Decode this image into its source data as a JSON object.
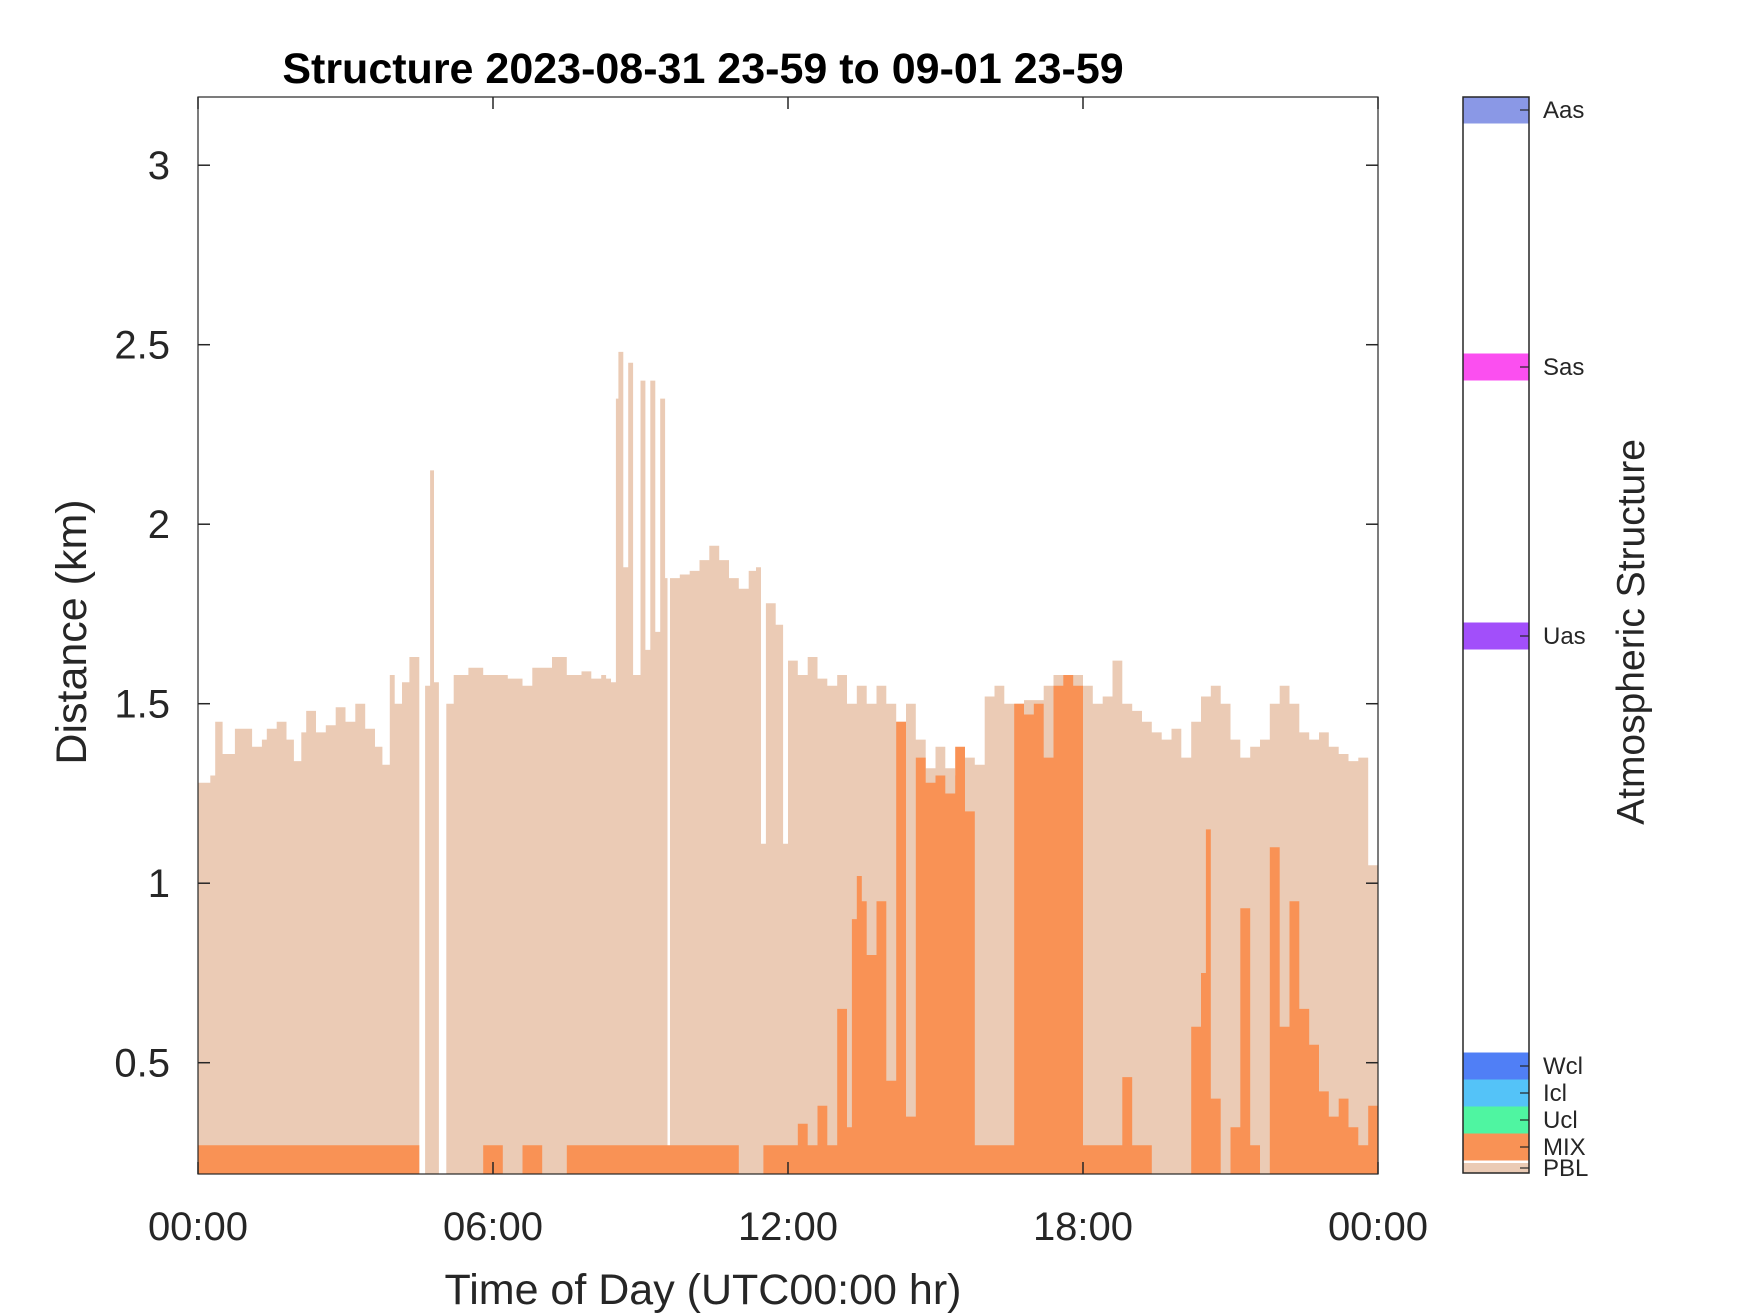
{
  "chart_data": {
    "type": "area",
    "title": "Structure 2023-08-31 23-59 to 09-01 23-59",
    "xlabel": "Time of Day (UTC00:00 hr)",
    "ylabel": "Distance (km)",
    "x_unit": "hours",
    "xlim": [
      0,
      24
    ],
    "ylim": [
      0.19,
      3.19
    ],
    "xticks": [
      0,
      6,
      12,
      18,
      24
    ],
    "xtick_labels": [
      "00:00",
      "06:00",
      "12:00",
      "18:00",
      "00:00"
    ],
    "yticks": [
      0.5,
      1,
      1.5,
      2,
      2.5,
      3
    ],
    "ytick_labels": [
      "0.5",
      "1",
      "1.5",
      "2",
      "2.5",
      "3"
    ],
    "colors": {
      "PBL": "#ebcbb5",
      "MIX": "#f99255"
    },
    "series": [
      {
        "name": "PBL",
        "color": "#ebcbb5",
        "points": [
          [
            0.0,
            1.28
          ],
          [
            0.25,
            1.3
          ],
          [
            0.35,
            1.45
          ],
          [
            0.5,
            1.36
          ],
          [
            0.7,
            1.36
          ],
          [
            0.75,
            1.43
          ],
          [
            1.0,
            1.43
          ],
          [
            1.1,
            1.38
          ],
          [
            1.3,
            1.4
          ],
          [
            1.4,
            1.43
          ],
          [
            1.6,
            1.45
          ],
          [
            1.8,
            1.4
          ],
          [
            1.95,
            1.34
          ],
          [
            2.1,
            1.42
          ],
          [
            2.2,
            1.48
          ],
          [
            2.4,
            1.42
          ],
          [
            2.6,
            1.44
          ],
          [
            2.8,
            1.49
          ],
          [
            3.0,
            1.45
          ],
          [
            3.2,
            1.5
          ],
          [
            3.4,
            1.43
          ],
          [
            3.6,
            1.38
          ],
          [
            3.75,
            1.33
          ],
          [
            3.9,
            1.58
          ],
          [
            4.0,
            1.5
          ],
          [
            4.15,
            1.56
          ],
          [
            4.3,
            1.63
          ],
          [
            4.45,
            1.63
          ],
          [
            4.5,
            0.19
          ],
          [
            4.6,
            0.19
          ],
          [
            4.62,
            1.55
          ],
          [
            4.72,
            2.15
          ],
          [
            4.8,
            1.56
          ],
          [
            4.9,
            0.19
          ],
          [
            5.05,
            1.5
          ],
          [
            5.2,
            1.58
          ],
          [
            5.5,
            1.6
          ],
          [
            5.8,
            1.58
          ],
          [
            6.0,
            1.58
          ],
          [
            6.3,
            1.57
          ],
          [
            6.6,
            1.55
          ],
          [
            6.8,
            1.6
          ],
          [
            7.0,
            1.6
          ],
          [
            7.2,
            1.63
          ],
          [
            7.5,
            1.58
          ],
          [
            7.8,
            1.59
          ],
          [
            8.0,
            1.57
          ],
          [
            8.2,
            1.58
          ],
          [
            8.3,
            1.57
          ],
          [
            8.4,
            1.56
          ],
          [
            8.5,
            2.35
          ],
          [
            8.55,
            2.48
          ],
          [
            8.65,
            1.88
          ],
          [
            8.75,
            2.45
          ],
          [
            8.85,
            1.58
          ],
          [
            9.0,
            2.4
          ],
          [
            9.1,
            1.65
          ],
          [
            9.2,
            2.4
          ],
          [
            9.3,
            1.7
          ],
          [
            9.4,
            2.35
          ],
          [
            9.5,
            1.85
          ],
          [
            9.55,
            0.19
          ],
          [
            9.6,
            1.85
          ],
          [
            9.8,
            1.86
          ],
          [
            10.0,
            1.87
          ],
          [
            10.2,
            1.9
          ],
          [
            10.4,
            1.94
          ],
          [
            10.6,
            1.9
          ],
          [
            10.8,
            1.85
          ],
          [
            11.0,
            1.82
          ],
          [
            11.2,
            1.87
          ],
          [
            11.35,
            1.88
          ],
          [
            11.45,
            1.11
          ],
          [
            11.55,
            1.78
          ],
          [
            11.75,
            1.72
          ],
          [
            11.9,
            1.11
          ],
          [
            12.0,
            1.62
          ],
          [
            12.2,
            1.58
          ],
          [
            12.4,
            1.63
          ],
          [
            12.6,
            1.57
          ],
          [
            12.8,
            1.55
          ],
          [
            13.0,
            1.58
          ],
          [
            13.2,
            1.5
          ],
          [
            13.4,
            1.55
          ],
          [
            13.6,
            1.5
          ],
          [
            13.8,
            1.55
          ],
          [
            14.0,
            1.5
          ],
          [
            14.2,
            1.45
          ],
          [
            14.4,
            1.5
          ],
          [
            14.6,
            1.4
          ],
          [
            14.8,
            1.32
          ],
          [
            15.0,
            1.38
          ],
          [
            15.2,
            1.32
          ],
          [
            15.4,
            1.3
          ],
          [
            15.6,
            1.35
          ],
          [
            15.8,
            1.33
          ],
          [
            16.0,
            1.52
          ],
          [
            16.2,
            1.55
          ],
          [
            16.4,
            1.5
          ],
          [
            16.6,
            1.5
          ],
          [
            16.8,
            1.51
          ],
          [
            17.0,
            1.51
          ],
          [
            17.2,
            1.55
          ],
          [
            17.4,
            1.58
          ],
          [
            17.6,
            1.58
          ],
          [
            17.8,
            1.58
          ],
          [
            18.0,
            1.55
          ],
          [
            18.2,
            1.5
          ],
          [
            18.4,
            1.52
          ],
          [
            18.6,
            1.62
          ],
          [
            18.8,
            1.5
          ],
          [
            19.0,
            1.48
          ],
          [
            19.2,
            1.45
          ],
          [
            19.4,
            1.42
          ],
          [
            19.6,
            1.4
          ],
          [
            19.8,
            1.43
          ],
          [
            20.0,
            1.35
          ],
          [
            20.2,
            1.45
          ],
          [
            20.4,
            1.52
          ],
          [
            20.6,
            1.55
          ],
          [
            20.8,
            1.5
          ],
          [
            21.0,
            1.4
          ],
          [
            21.2,
            1.35
          ],
          [
            21.4,
            1.38
          ],
          [
            21.6,
            1.4
          ],
          [
            21.8,
            1.5
          ],
          [
            22.0,
            1.55
          ],
          [
            22.2,
            1.5
          ],
          [
            22.4,
            1.42
          ],
          [
            22.6,
            1.4
          ],
          [
            22.8,
            1.42
          ],
          [
            23.0,
            1.38
          ],
          [
            23.2,
            1.36
          ],
          [
            23.4,
            1.34
          ],
          [
            23.6,
            1.35
          ],
          [
            23.8,
            1.05
          ],
          [
            24.0,
            1.05
          ]
        ]
      },
      {
        "name": "MIX",
        "color": "#f99255",
        "points": [
          [
            0.0,
            0.27
          ],
          [
            4.45,
            0.27
          ],
          [
            4.5,
            0.19
          ],
          [
            5.0,
            0.19
          ],
          [
            5.8,
            0.27
          ],
          [
            6.2,
            0.19
          ],
          [
            6.6,
            0.27
          ],
          [
            7.0,
            0.19
          ],
          [
            7.5,
            0.27
          ],
          [
            8.0,
            0.27
          ],
          [
            8.4,
            0.27
          ],
          [
            9.5,
            0.27
          ],
          [
            10.0,
            0.27
          ],
          [
            10.5,
            0.27
          ],
          [
            11.0,
            0.19
          ],
          [
            11.5,
            0.27
          ],
          [
            12.0,
            0.27
          ],
          [
            12.2,
            0.33
          ],
          [
            12.4,
            0.27
          ],
          [
            12.6,
            0.38
          ],
          [
            12.8,
            0.27
          ],
          [
            13.0,
            0.65
          ],
          [
            13.2,
            0.32
          ],
          [
            13.3,
            0.9
          ],
          [
            13.4,
            1.02
          ],
          [
            13.5,
            0.95
          ],
          [
            13.6,
            0.8
          ],
          [
            13.8,
            0.95
          ],
          [
            14.0,
            0.45
          ],
          [
            14.2,
            1.45
          ],
          [
            14.4,
            0.35
          ],
          [
            14.6,
            1.35
          ],
          [
            14.8,
            1.28
          ],
          [
            15.0,
            1.3
          ],
          [
            15.2,
            1.25
          ],
          [
            15.4,
            1.38
          ],
          [
            15.6,
            1.2
          ],
          [
            15.8,
            0.27
          ],
          [
            16.0,
            0.27
          ],
          [
            16.2,
            0.27
          ],
          [
            16.4,
            0.27
          ],
          [
            16.6,
            1.5
          ],
          [
            16.8,
            1.47
          ],
          [
            17.0,
            1.5
          ],
          [
            17.2,
            1.35
          ],
          [
            17.4,
            1.55
          ],
          [
            17.6,
            1.58
          ],
          [
            17.8,
            1.55
          ],
          [
            18.0,
            0.27
          ],
          [
            18.4,
            0.27
          ],
          [
            18.8,
            0.46
          ],
          [
            19.0,
            0.27
          ],
          [
            19.4,
            0.19
          ],
          [
            20.0,
            0.19
          ],
          [
            20.2,
            0.6
          ],
          [
            20.4,
            0.75
          ],
          [
            20.5,
            1.15
          ],
          [
            20.6,
            0.4
          ],
          [
            20.8,
            0.19
          ],
          [
            21.0,
            0.32
          ],
          [
            21.2,
            0.93
          ],
          [
            21.4,
            0.27
          ],
          [
            21.6,
            0.19
          ],
          [
            21.8,
            1.1
          ],
          [
            22.0,
            0.6
          ],
          [
            22.2,
            0.95
          ],
          [
            22.4,
            0.65
          ],
          [
            22.6,
            0.55
          ],
          [
            22.8,
            0.42
          ],
          [
            23.0,
            0.35
          ],
          [
            23.2,
            0.4
          ],
          [
            23.4,
            0.32
          ],
          [
            23.6,
            0.27
          ],
          [
            23.8,
            0.38
          ],
          [
            24.0,
            0.19
          ]
        ]
      }
    ],
    "colorbar": {
      "label": "Atmospheric Structure",
      "entries": [
        {
          "label": "Aas",
          "color": "#8a98e6"
        },
        {
          "label": "Sas",
          "color": "#fb4ff0"
        },
        {
          "label": "Uas",
          "color": "#a24ffa"
        },
        {
          "label": "Wcl",
          "color": "#507ff6"
        },
        {
          "label": "Icl",
          "color": "#54c3f8"
        },
        {
          "label": "Ucl",
          "color": "#4ff5a1"
        },
        {
          "label": "MIX",
          "color": "#f99255"
        },
        {
          "label": "PBL",
          "color": "#ebcbb5"
        }
      ]
    },
    "grid": false,
    "legend": "colorbar-right"
  }
}
